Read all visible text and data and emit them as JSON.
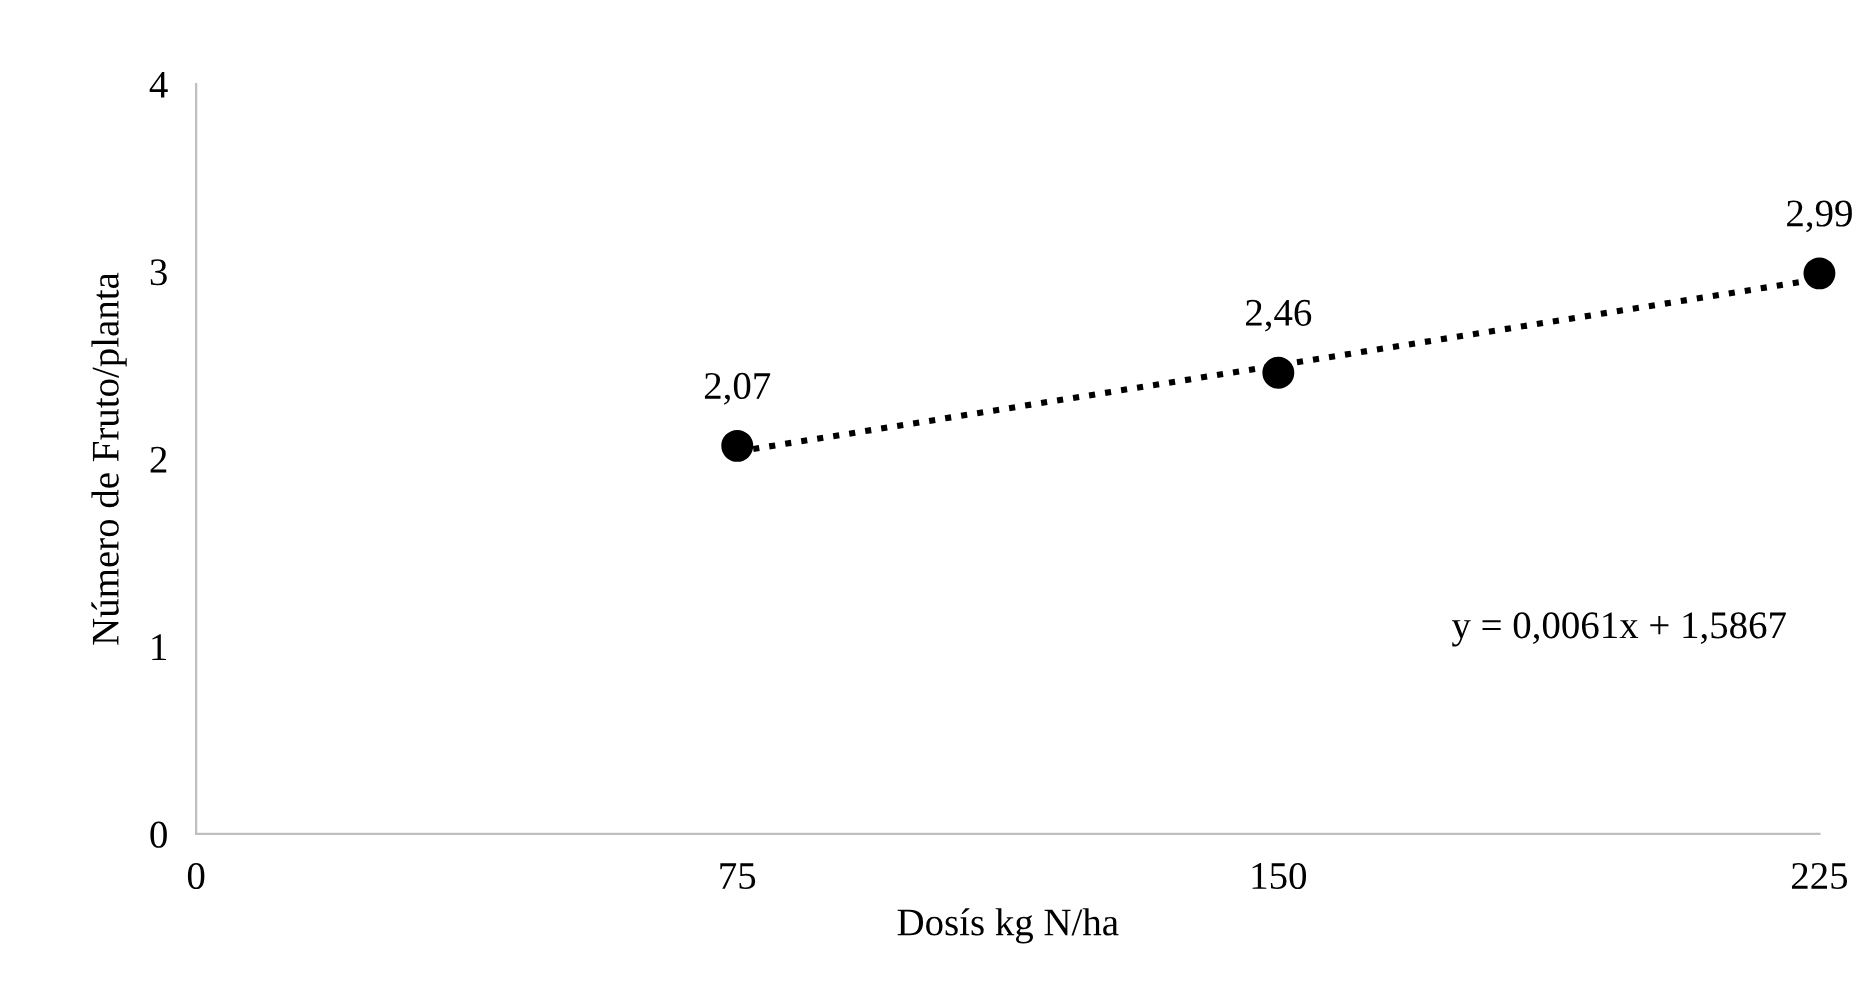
{
  "chart_data": {
    "type": "scatter",
    "xlabel": "Dosís kg N/ha",
    "ylabel": "Número de Fruto/planta",
    "x": [
      75,
      150,
      225
    ],
    "series": [
      {
        "color": "#000000",
        "values": [
          2.07,
          2.46,
          2.99
        ],
        "marker": "circle",
        "value_labels": [
          "2,07",
          "2,46",
          "2,99"
        ]
      },
      {
        "type": "line",
        "color": "#000000",
        "x": [
          75,
          225
        ],
        "values": [
          2.04,
          2.96
        ],
        "line_style": "dotted",
        "marker": "none"
      }
    ],
    "annotations": [
      "y = 0,0061x + 1,5867"
    ],
    "xlim": [
      0,
      225
    ],
    "xticks": [
      0,
      75,
      150,
      225
    ],
    "ylim": [
      0,
      4
    ],
    "yticks": [
      0,
      1,
      2,
      3,
      4
    ],
    "grid": false,
    "legend": false
  }
}
